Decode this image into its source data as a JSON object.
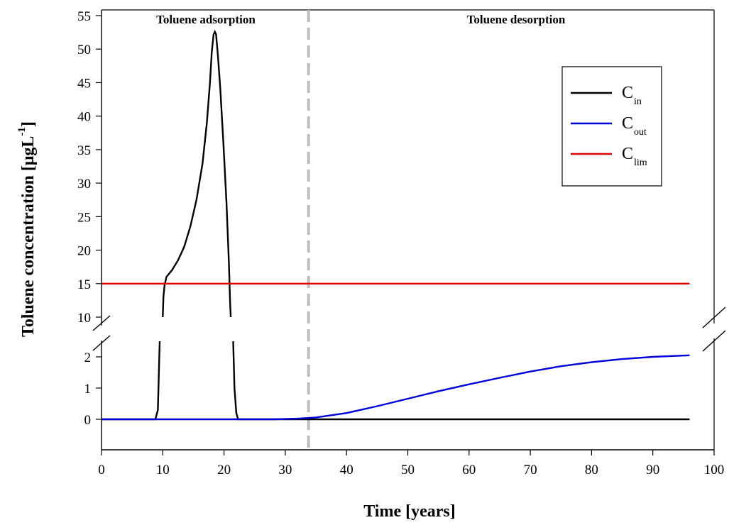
{
  "chart_data": {
    "type": "line",
    "xlabel": "Time [years]",
    "ylabel_main": "Toluene concentration [μgL",
    "ylabel_sup": "-1",
    "ylabel_end": "]",
    "xlim": [
      0,
      100
    ],
    "x_ticks": [
      "0",
      "10",
      "20",
      "30",
      "40",
      "50",
      "60",
      "70",
      "80",
      "90",
      "100"
    ],
    "y_axis_broken": true,
    "y_lower_range": [
      -1,
      2.5
    ],
    "y_upper_range": [
      10,
      55
    ],
    "y_ticks_lower": [
      "0",
      "1",
      "2"
    ],
    "y_ticks_upper": [
      "10",
      "15",
      "20",
      "25",
      "30",
      "35",
      "40",
      "45",
      "50",
      "55"
    ],
    "annotations": {
      "adsorption": "Toluene adsorption",
      "desorption": "Toluene desorption"
    },
    "divider_x": 33.8,
    "grid": false,
    "legend_position": "top-right",
    "series": [
      {
        "main": "C",
        "sub": "in",
        "color": "#000000",
        "lower": [
          [
            0,
            0
          ],
          [
            8.8,
            0
          ],
          [
            9.2,
            0.3
          ],
          [
            9.5,
            2.5
          ]
        ],
        "upper": [
          [
            10,
            10
          ],
          [
            10.1,
            13
          ],
          [
            10.3,
            14.8
          ],
          [
            10.6,
            16
          ],
          [
            11.5,
            17
          ],
          [
            12.5,
            18.5
          ],
          [
            13.5,
            20.5
          ],
          [
            14.5,
            23.5
          ],
          [
            15.5,
            27.5
          ],
          [
            16.5,
            33
          ],
          [
            17.2,
            39
          ],
          [
            17.7,
            45
          ],
          [
            18.0,
            49.5
          ],
          [
            18.3,
            52.2
          ],
          [
            18.5,
            52.6
          ],
          [
            18.7,
            52.2
          ],
          [
            19.0,
            49
          ],
          [
            19.4,
            44
          ],
          [
            19.9,
            36
          ],
          [
            20.4,
            27
          ],
          [
            20.8,
            18
          ],
          [
            21.0,
            12
          ],
          [
            21.1,
            10
          ]
        ],
        "lower_tail": [
          [
            21.5,
            2.5
          ],
          [
            21.7,
            1
          ],
          [
            22.0,
            0.2
          ],
          [
            22.3,
            0
          ],
          [
            96,
            0
          ]
        ]
      },
      {
        "main": "C",
        "sub": "out",
        "color": "#0000dd",
        "lower": [
          [
            0,
            0
          ],
          [
            28,
            0
          ],
          [
            32,
            0.02
          ],
          [
            35,
            0.06
          ],
          [
            40,
            0.2
          ],
          [
            45,
            0.42
          ],
          [
            50,
            0.66
          ],
          [
            55,
            0.9
          ],
          [
            60,
            1.12
          ],
          [
            65,
            1.33
          ],
          [
            70,
            1.53
          ],
          [
            75,
            1.7
          ],
          [
            80,
            1.83
          ],
          [
            85,
            1.93
          ],
          [
            90,
            2.0
          ],
          [
            96,
            2.05
          ]
        ]
      },
      {
        "main": "C",
        "sub": "lim",
        "color": "#dd0000",
        "value": 15,
        "x_range": [
          0,
          96
        ]
      }
    ]
  }
}
